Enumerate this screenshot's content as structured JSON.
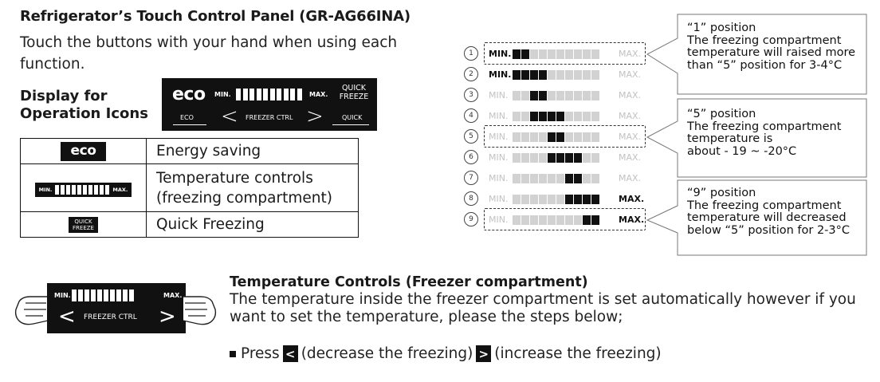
{
  "title": "Refrigerator’s Touch Control Panel (GR-AG66INA)",
  "intro": "Touch the buttons with your hand when using each function.",
  "display_heading": [
    "Display for",
    "Operation Icons"
  ],
  "panel": {
    "eco": "eco",
    "min": "MIN.",
    "max": "MAX.",
    "quick_freeze": [
      "QUICK",
      "FREEZE"
    ],
    "bottom_eco": "ECO",
    "bottom_ctrl": "FREEZER CTRL",
    "bottom_quick": "QUICK",
    "left_chevron": "<",
    "right_chevron": ">",
    "bar_count": 10
  },
  "icon_table": [
    {
      "icon": "eco",
      "label": "Energy saving"
    },
    {
      "icon": "bar",
      "min": "MIN.",
      "max": "MAX.",
      "label_lines": [
        "Temperature controls",
        "(freezing compartment)"
      ]
    },
    {
      "icon": "qf",
      "qf_lines": [
        "QUICK",
        "FREEZE"
      ],
      "label": "Quick Freezing"
    }
  ],
  "positions": {
    "min_label": "MIN.",
    "max_label": "MAX.",
    "rows": [
      {
        "n": "1",
        "on": [
          1,
          2
        ],
        "min_dark": false,
        "max_dark": false
      },
      {
        "n": "2",
        "on": [
          1,
          2,
          3,
          4
        ],
        "min_dark": true,
        "max_dark": false
      },
      {
        "n": "3",
        "on": [
          3,
          4
        ],
        "min_dark": false,
        "max_dark": false
      },
      {
        "n": "4",
        "on": [
          3,
          4,
          5,
          6
        ],
        "min_dark": false,
        "max_dark": false
      },
      {
        "n": "5",
        "on": [
          5,
          6
        ],
        "min_dark": false,
        "max_dark": false
      },
      {
        "n": "6",
        "on": [
          5,
          6,
          7,
          8
        ],
        "min_dark": false,
        "max_dark": false
      },
      {
        "n": "7",
        "on": [
          7,
          8
        ],
        "min_dark": false,
        "max_dark": false
      },
      {
        "n": "8",
        "on": [
          7,
          8,
          9,
          10
        ],
        "min_dark": false,
        "max_dark": true
      },
      {
        "n": "9",
        "on": [
          9,
          10
        ],
        "min_dark": false,
        "max_dark": true
      }
    ]
  },
  "callouts": [
    {
      "lines": [
        "“1” position",
        "The freezing compartment",
        "temperature will raised more",
        "than “5” position for 3-4°C"
      ]
    },
    {
      "lines": [
        "“5” position",
        "The freezing compartment",
        "temperature is",
        "about - 19 ~ -20°C"
      ]
    },
    {
      "lines": [
        "“9” position",
        "The freezing compartment",
        "temperature will decreased",
        "below “5” position for 2-3°C"
      ]
    }
  ],
  "bottom": {
    "panel_min": "MIN.",
    "panel_max": "MAX.",
    "panel_ctrl": "FREEZER CTRL",
    "heading": "Temperature Controls (Freezer compartment)",
    "body": "The temperature inside the freezer compartment is set automatically however if you want to set the temperature, please the steps below;",
    "press": "Press",
    "decrease_btn": "<",
    "decrease_text": "(decrease the freezing)",
    "increase_btn": ">",
    "increase_text": "(increase the freezing)"
  }
}
